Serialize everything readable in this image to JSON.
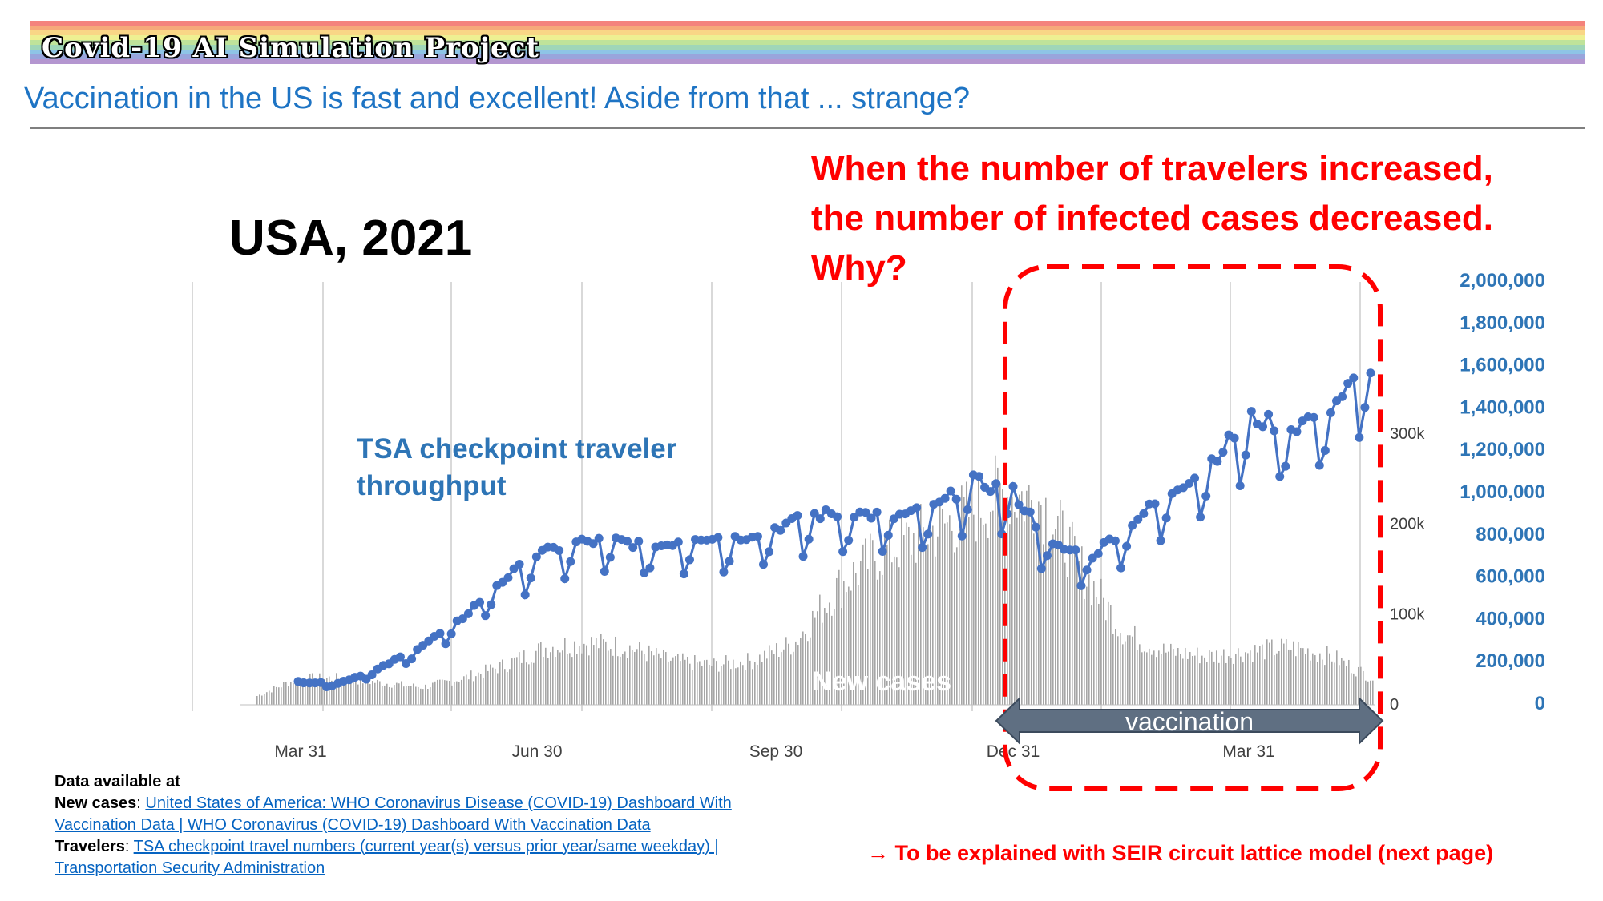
{
  "header": {
    "banner_title": "Covid-19 AI Simulation Project",
    "subtitle": "Vaccination in the US is fast and excellent! Aside from that ... strange?"
  },
  "colors": {
    "tsa_series": "#4472c4",
    "tsa_axis": "#2e75b6",
    "new_cases_bars": "#a6a6a6",
    "callout": "#ff0000",
    "arrow": "#5f6f82",
    "rainbow": [
      "#f4837d",
      "#f6a97a",
      "#f9d686",
      "#eef092",
      "#bfe39a",
      "#9fd6b8",
      "#8ec4e6",
      "#99a5dc",
      "#b496d0"
    ]
  },
  "chart_title": "USA, 2021",
  "callout_lines": [
    "When the number of travelers increased,",
    "the number of infected cases decreased.",
    "Why?"
  ],
  "chart_data": {
    "type": "combo",
    "x_ticks": [
      "Mar 31",
      "Jun 30",
      "Sep 30",
      "Dec 31",
      "Mar 31"
    ],
    "grid": true,
    "series": [
      {
        "name": "TSA checkpoint traveler throughput",
        "type": "line",
        "axis": "right-outer",
        "points": [
          [
            "Mar 31",
            100000
          ],
          [
            "Apr 15",
            95000
          ],
          [
            "Apr 30",
            160000
          ],
          [
            "May 15",
            260000
          ],
          [
            "May 31",
            380000
          ],
          [
            "Jun 15",
            560000
          ],
          [
            "Jun 30",
            700000
          ],
          [
            "Jul 15",
            760000
          ],
          [
            "Jul 31",
            770000
          ],
          [
            "Aug 15",
            740000
          ],
          [
            "Aug 31",
            790000
          ],
          [
            "Sep 15",
            780000
          ],
          [
            "Sep 30",
            830000
          ],
          [
            "Oct 15",
            890000
          ],
          [
            "Oct 31",
            900000
          ],
          [
            "Nov 15",
            880000
          ],
          [
            "Nov 30",
            920000
          ],
          [
            "Dec 15",
            1050000
          ],
          [
            "Dec 31",
            1000000
          ],
          [
            "Jan 15",
            740000
          ],
          [
            "Jan 31",
            700000
          ],
          [
            "Feb 15",
            860000
          ],
          [
            "Feb 28",
            1000000
          ],
          [
            "Mar 15",
            1150000
          ],
          [
            "Mar 31",
            1350000
          ],
          [
            "Apr 15",
            1300000
          ],
          [
            "Apr 30",
            1400000
          ],
          [
            "May 10",
            1600000
          ]
        ],
        "weekly_dip": 0.2
      },
      {
        "name": "New cases",
        "type": "bar",
        "axis": "right-inner",
        "points": [
          [
            "Mar 31",
            10000
          ],
          [
            "Apr 15",
            30000
          ],
          [
            "Apr 30",
            30000
          ],
          [
            "May 15",
            25000
          ],
          [
            "May 31",
            20000
          ],
          [
            "Jun 15",
            30000
          ],
          [
            "Jun 30",
            45000
          ],
          [
            "Jul 15",
            65000
          ],
          [
            "Jul 31",
            70000
          ],
          [
            "Aug 15",
            65000
          ],
          [
            "Aug 31",
            50000
          ],
          [
            "Sep 15",
            45000
          ],
          [
            "Sep 30",
            50000
          ],
          [
            "Oct 15",
            70000
          ],
          [
            "Oct 31",
            130000
          ],
          [
            "Nov 15",
            170000
          ],
          [
            "Nov 30",
            190000
          ],
          [
            "Dec 15",
            210000
          ],
          [
            "Dec 31",
            240000
          ],
          [
            "Jan 15",
            230000
          ],
          [
            "Jan 31",
            150000
          ],
          [
            "Feb 15",
            80000
          ],
          [
            "Feb 28",
            60000
          ],
          [
            "Mar 15",
            55000
          ],
          [
            "Mar 31",
            60000
          ],
          [
            "Apr 15",
            65000
          ],
          [
            "Apr 30",
            55000
          ],
          [
            "May 10",
            30000
          ]
        ]
      }
    ],
    "y_right_outer": {
      "ticks": [
        "0",
        "200,000",
        "400,000",
        "600,000",
        "800,000",
        "1,000,000",
        "1,200,000",
        "1,400,000",
        "1,600,000",
        "1,800,000",
        "2,000,000"
      ],
      "ylim": [
        0,
        2000000
      ]
    },
    "y_right_inner": {
      "ticks": [
        "0",
        "100k",
        "200k",
        "300k"
      ],
      "ylim": [
        0,
        300000
      ]
    },
    "annotations": {
      "tsa_label_lines": [
        "TSA checkpoint traveler",
        "throughput"
      ],
      "new_cases_label": "New cases",
      "vaccination_label": "vaccination"
    }
  },
  "sources": {
    "heading": "Data available at",
    "new_cases_label": "New cases",
    "new_cases_link_line1": "United States of America: WHO Coronavirus Disease (COVID-19) Dashboard With",
    "new_cases_link_line2": "Vaccination Data | WHO Coronavirus (COVID-19) Dashboard With Vaccination Data",
    "travelers_label": "Travelers",
    "travelers_link_line1": "TSA checkpoint travel numbers (current year(s) versus prior year/same weekday) |",
    "travelers_link_line2": "Transportation Security Administration"
  },
  "footer_note": "→ To be explained with SEIR circuit lattice model (next page)"
}
